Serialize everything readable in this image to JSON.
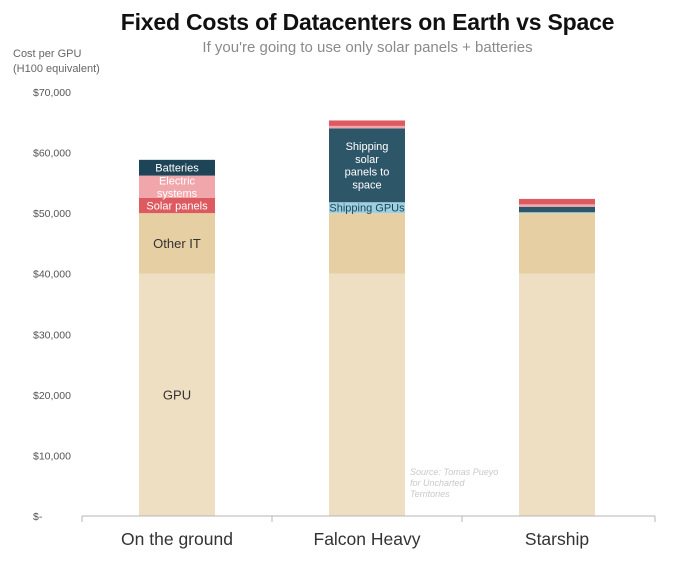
{
  "title": "Fixed Costs of Datacenters on Earth vs Space",
  "subtitle": "If you're going to use only solar panels + batteries",
  "chart_data": {
    "type": "bar",
    "stacked": true,
    "ylabel": [
      "Cost per GPU",
      "(H100 equivalent)"
    ],
    "ylim": [
      0,
      70000
    ],
    "yticks": [
      0,
      10000,
      20000,
      30000,
      40000,
      50000,
      60000,
      70000
    ],
    "ytick_labels": [
      "$-",
      "$10,000",
      "$20,000",
      "$30,000",
      "$40,000",
      "$50,000",
      "$60,000",
      "$70,000"
    ],
    "categories": [
      "On the ground",
      "Falcon Heavy",
      "Starship"
    ],
    "series": [
      {
        "name": "GPU",
        "color": "#efdfc2",
        "values": [
          40000,
          40000,
          40000
        ]
      },
      {
        "name": "Other IT",
        "color": "#e6cfa2",
        "values": [
          10000,
          10000,
          10000
        ]
      },
      {
        "name": "Shipping GPUs",
        "color": "#9dd0e3",
        "values": [
          0,
          1800,
          150
        ]
      },
      {
        "name": "Solar panels",
        "color": "#dc5a60",
        "values": [
          2500,
          0,
          0
        ]
      },
      {
        "name": "Electric systems",
        "color": "#f0a6aa",
        "values": [
          3700,
          0,
          0
        ]
      },
      {
        "name": "Batteries",
        "color": "#1e4457",
        "values": [
          2600,
          0,
          0
        ]
      },
      {
        "name": "Shipping solar panels to space",
        "color": "#2e5669",
        "values": [
          0,
          12200,
          900
        ]
      },
      {
        "name": "",
        "color": "#f0a6aa",
        "values": [
          0,
          400,
          400
        ]
      },
      {
        "name": "",
        "color": "#dc5a60",
        "values": [
          0,
          900,
          900
        ]
      }
    ],
    "segment_labels": [
      {
        "category": 0,
        "series": 0,
        "text": "GPU",
        "color": "#333333"
      },
      {
        "category": 0,
        "series": 1,
        "text": "Other IT",
        "color": "#333333"
      },
      {
        "category": 0,
        "series": 3,
        "text": "Solar panels",
        "color": "#ffffff"
      },
      {
        "category": 0,
        "series": 4,
        "lines": [
          "Electric",
          "systems"
        ],
        "color": "#ffffff"
      },
      {
        "category": 0,
        "series": 5,
        "text": "Batteries",
        "color": "#ffffff"
      },
      {
        "category": 1,
        "series": 2,
        "text": "Shipping GPUs",
        "color": "#1e4457"
      },
      {
        "category": 1,
        "series": 6,
        "lines": [
          "Shipping",
          "solar",
          "panels to",
          "space"
        ],
        "color": "#ffffff"
      }
    ],
    "annotation": [
      "Source: Tomas Pueyo",
      "for Uncharted",
      "Territories"
    ]
  }
}
